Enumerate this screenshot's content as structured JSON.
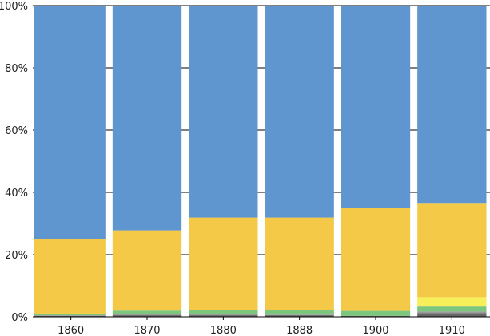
{
  "chart_data": {
    "type": "stacked-bar-100",
    "title": "",
    "xlabel": "",
    "ylabel": "",
    "ylim": [
      0,
      100
    ],
    "categories": [
      "1860",
      "1870",
      "1880",
      "1888",
      "1900",
      "1910"
    ],
    "y_ticks": [
      0,
      20,
      40,
      60,
      80,
      100
    ],
    "y_tick_labels": [
      "0%",
      "20%",
      "40%",
      "60%",
      "80%",
      "100%"
    ],
    "grid": "horizontal",
    "legend": "none",
    "series": [
      {
        "name": "dark gray",
        "color": "#666666",
        "values": [
          0.3,
          0.5,
          0.5,
          0.5,
          0.3,
          1.2
        ]
      },
      {
        "name": "gray",
        "color": "#9a9a9a",
        "values": [
          0.2,
          0.4,
          0.5,
          0.2,
          0.0,
          0.5
        ]
      },
      {
        "name": "green",
        "color": "#7dc67d",
        "values": [
          0.5,
          1.1,
          1.3,
          1.4,
          1.6,
          1.6
        ]
      },
      {
        "name": "light yellow",
        "color": "#f7ef5a",
        "values": [
          0.0,
          0.0,
          0.0,
          0.0,
          0.0,
          3.0
        ]
      },
      {
        "name": "yellow",
        "color": "#f5c948",
        "values": [
          24.0,
          25.8,
          29.6,
          29.8,
          33.0,
          30.3
        ]
      },
      {
        "name": "blue",
        "color": "#6096cf",
        "values": [
          75.0,
          72.2,
          68.1,
          67.9,
          65.1,
          63.4
        ]
      }
    ]
  }
}
